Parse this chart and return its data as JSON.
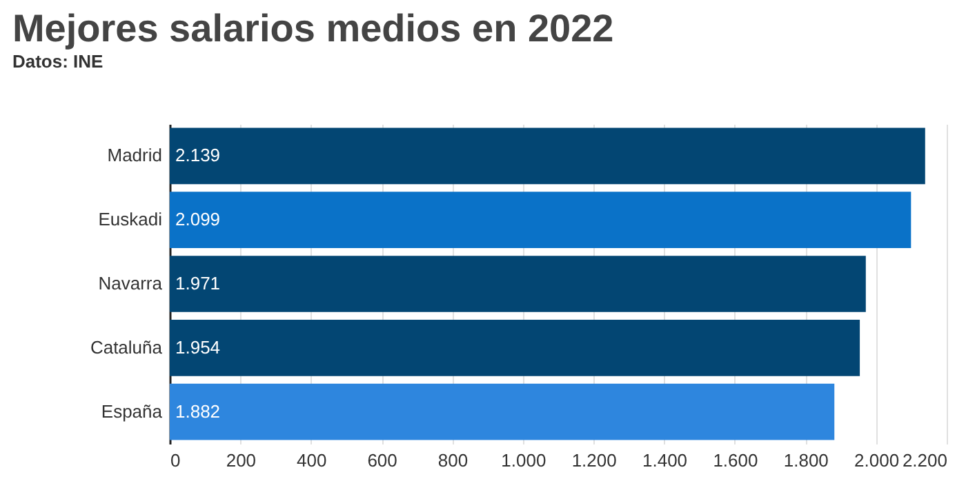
{
  "chart_data": {
    "type": "bar",
    "orientation": "horizontal",
    "title": "Mejores salarios medios en 2022",
    "categories": [
      "Madrid",
      "Euskadi",
      "Navarra",
      "Cataluña",
      "España"
    ],
    "values": [
      2139,
      2099,
      1971,
      1954,
      1882
    ],
    "colors": [
      "#034673",
      "#0a72c8",
      "#034673",
      "#034673",
      "#2e86de"
    ],
    "value_labels": [
      "2.139",
      "2.099",
      "1.971",
      "1.954",
      "1.882"
    ],
    "xlim": [
      0,
      2200
    ],
    "xticks": [
      0,
      200,
      400,
      600,
      800,
      {
        "value": 1000,
        "label": "1.000"
      },
      {
        "value": 1200,
        "label": "1.200"
      },
      {
        "value": 1400,
        "label": "1.400"
      },
      {
        "value": 1600,
        "label": "1.600"
      },
      {
        "value": 1800,
        "label": "1.800"
      },
      {
        "value": 2000,
        "label": "2.000"
      },
      {
        "value": 2200,
        "label": "2.200"
      }
    ],
    "grid": "x",
    "annotations": [
      "Datos: INE"
    ]
  }
}
